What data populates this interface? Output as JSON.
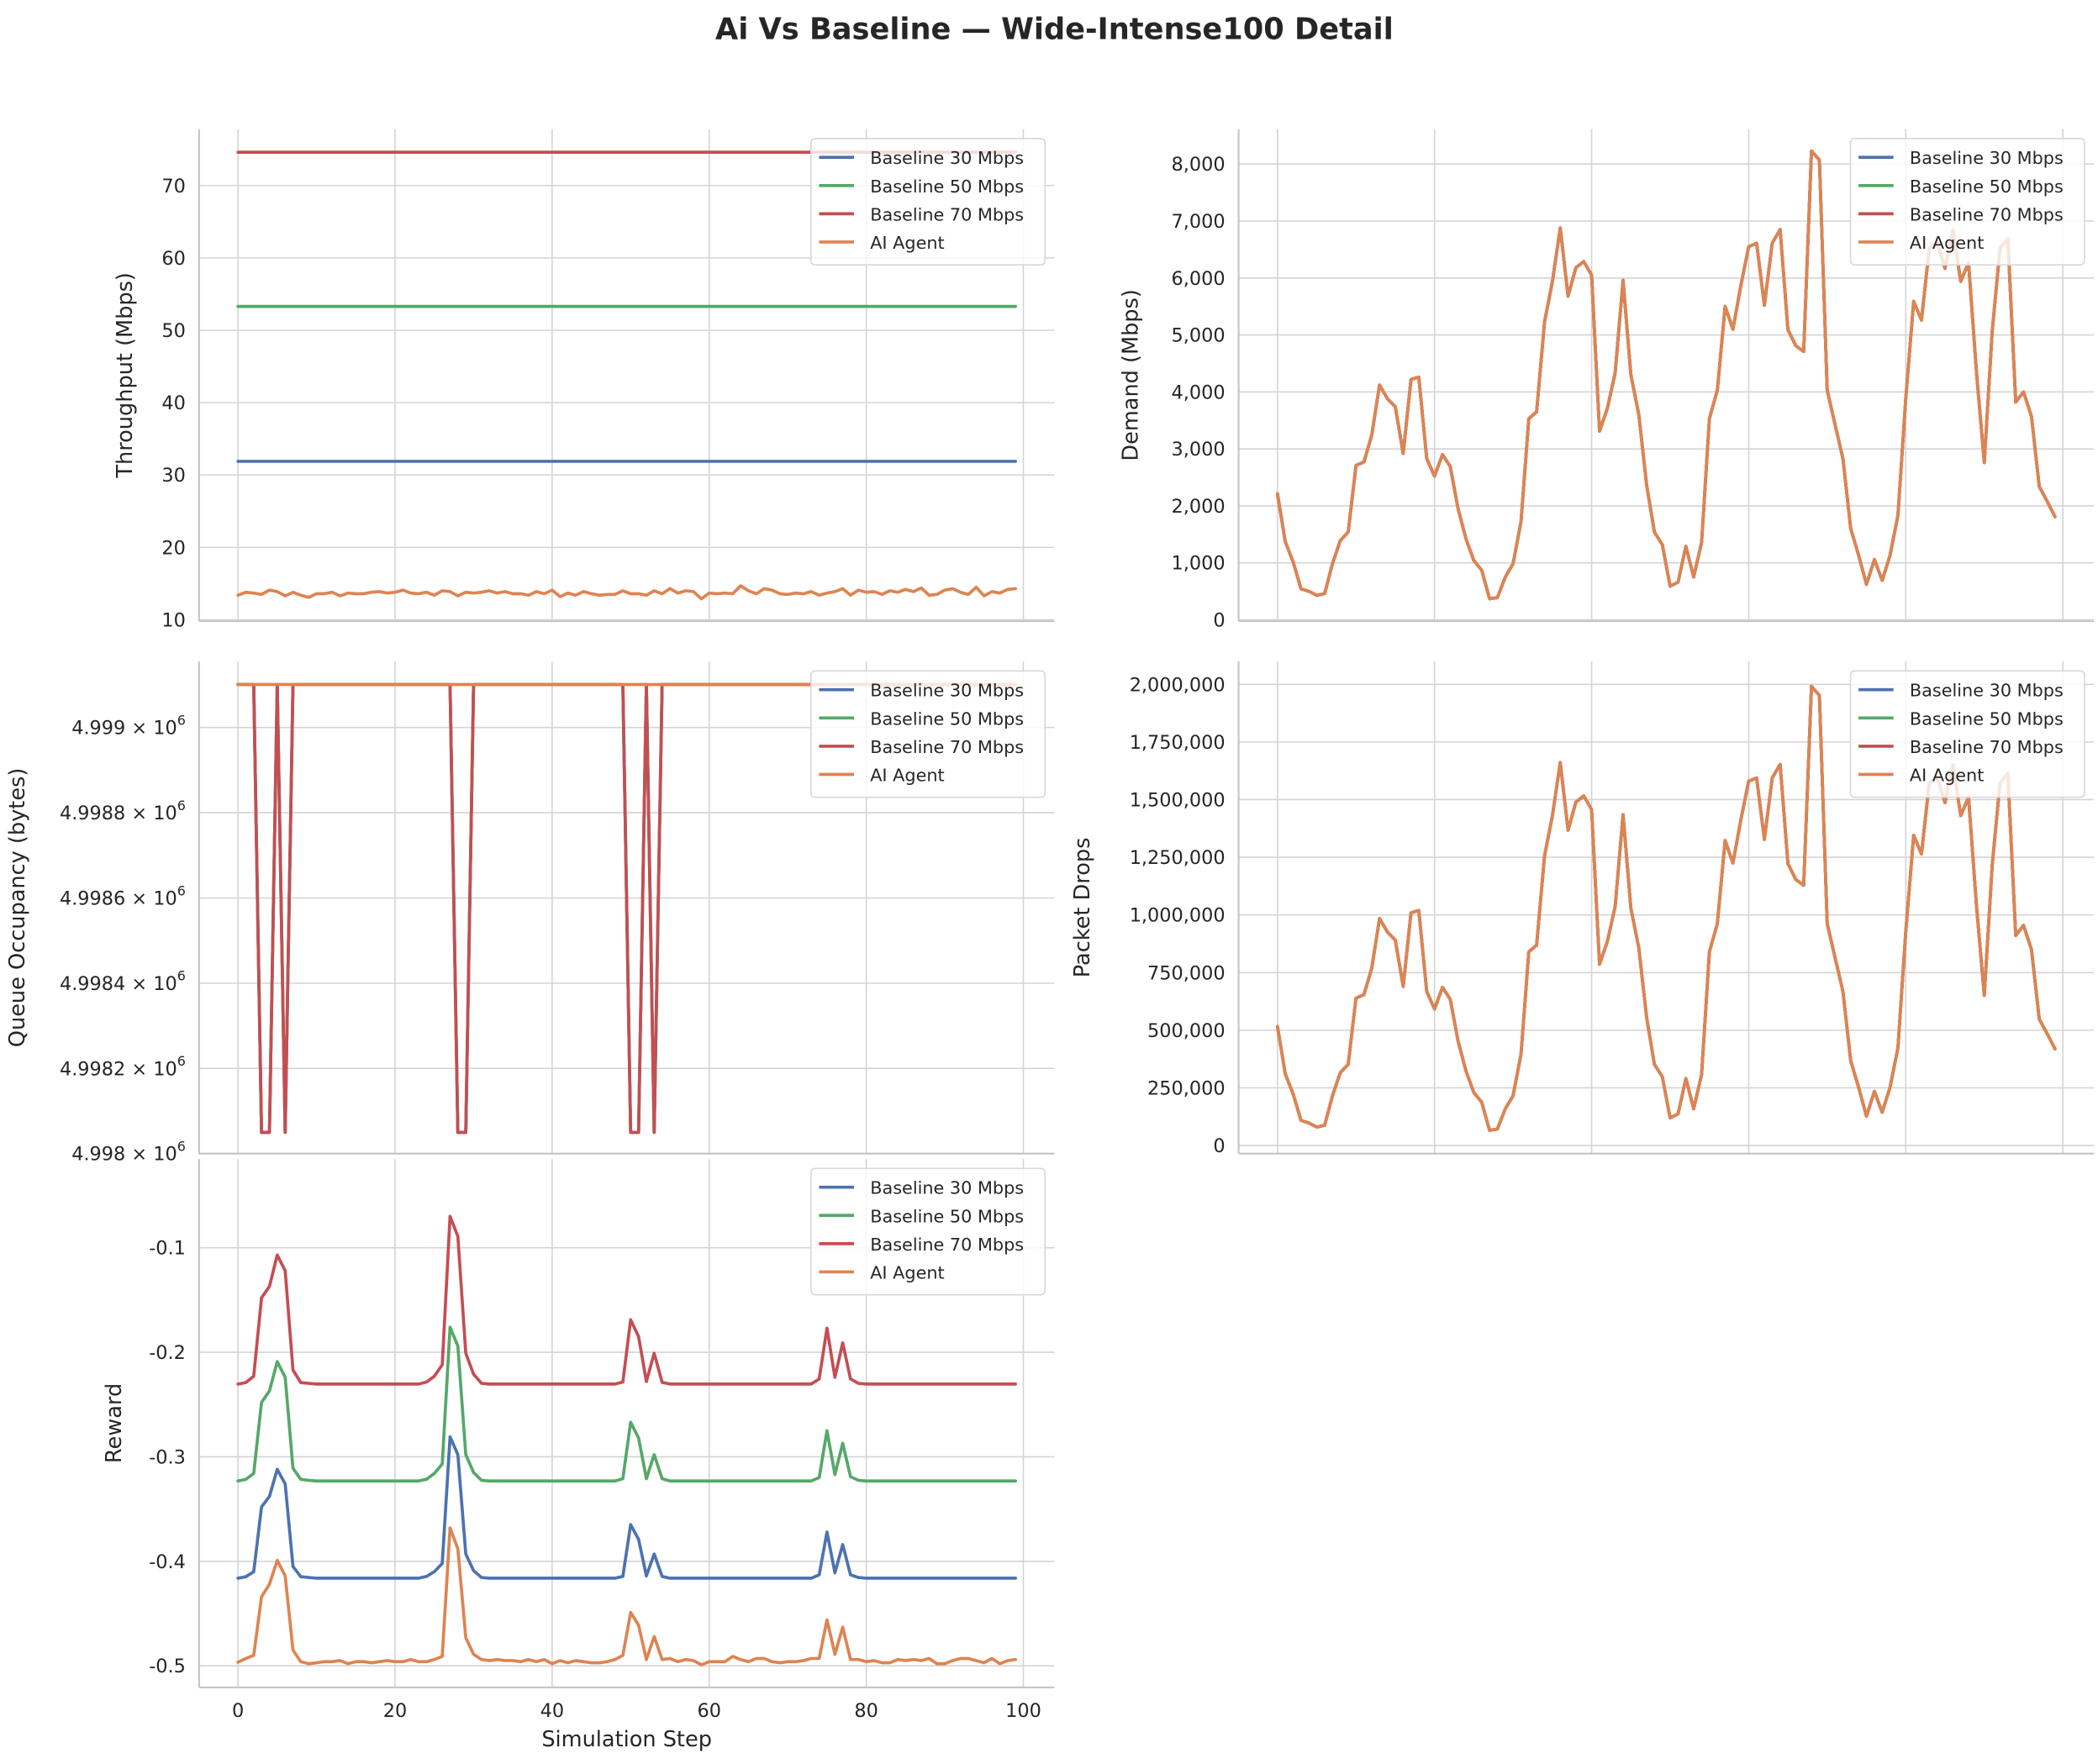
{
  "title": "Ai Vs Baseline — Wide-Intense100 Detail",
  "colors": {
    "Baseline 30 Mbps": "#4c72b0",
    "Baseline 50 Mbps": "#55a868",
    "Baseline 70 Mbps": "#c44e52",
    "AI Agent": "#dd8452"
  },
  "legend_labels": [
    "Baseline 30 Mbps",
    "Baseline 50 Mbps",
    "Baseline 70 Mbps",
    "AI Agent"
  ],
  "chart_data": [
    {
      "id": "throughput",
      "type": "line",
      "ylabel": "Throughput (Mbps)",
      "xlabel": "",
      "xlim": [
        -4.95,
        103.95
      ],
      "ylim": [
        9.81,
        77.8
      ],
      "xticks": [
        0,
        20,
        40,
        60,
        80,
        100
      ],
      "xtick_labels": [],
      "yticks": [
        10,
        20,
        30,
        40,
        50,
        60,
        70
      ],
      "ytick_labels": [
        "10",
        "20",
        "30",
        "40",
        "50",
        "60",
        "70"
      ],
      "grid": true,
      "legend": "upper-right",
      "series": [
        {
          "name": "Baseline 30 Mbps",
          "constant": 31.9
        },
        {
          "name": "Baseline 50 Mbps",
          "constant": 53.3
        },
        {
          "name": "Baseline 70 Mbps",
          "constant": 74.6
        },
        {
          "name": "AI Agent",
          "values": [
            13.4,
            13.8,
            13.7,
            13.5,
            14.1,
            13.9,
            13.3,
            13.8,
            13.4,
            13.1,
            13.6,
            13.6,
            13.8,
            13.3,
            13.7,
            13.6,
            13.6,
            13.8,
            13.9,
            13.7,
            13.8,
            14.1,
            13.7,
            13.6,
            13.8,
            13.4,
            14.0,
            13.9,
            13.3,
            13.8,
            13.7,
            13.8,
            14.0,
            13.7,
            13.9,
            13.6,
            13.6,
            13.4,
            13.9,
            13.6,
            14.1,
            13.2,
            13.7,
            13.4,
            13.9,
            13.6,
            13.4,
            13.5,
            13.5,
            14.0,
            13.6,
            13.6,
            13.4,
            14.0,
            13.6,
            14.3,
            13.7,
            14.0,
            13.9,
            12.9,
            13.7,
            13.6,
            13.7,
            13.6,
            14.7,
            14.0,
            13.6,
            14.3,
            14.1,
            13.6,
            13.5,
            13.7,
            13.6,
            13.9,
            13.4,
            13.7,
            13.9,
            14.3,
            13.4,
            14.1,
            13.8,
            13.9,
            13.5,
            14.0,
            13.8,
            14.2,
            13.9,
            14.4,
            13.4,
            13.5,
            14.1,
            14.3,
            13.8,
            13.5,
            14.5,
            13.3,
            13.9,
            13.7,
            14.2,
            14.3
          ]
        }
      ]
    },
    {
      "id": "demand",
      "type": "line",
      "ylabel": "Demand (Mbps)",
      "xlabel": "",
      "xlim": [
        -4.95,
        103.95
      ],
      "ylim": [
        -24,
        8614
      ],
      "xticks": [
        0,
        20,
        40,
        60,
        80,
        100
      ],
      "xtick_labels": [],
      "yticks": [
        0,
        1000,
        2000,
        3000,
        4000,
        5000,
        6000,
        7000,
        8000
      ],
      "ytick_labels": [
        "0",
        "1,000",
        "2,000",
        "3,000",
        "4,000",
        "5,000",
        "6,000",
        "7,000",
        "8,000"
      ],
      "grid": true,
      "legend": "upper-right",
      "note": "all four series identical",
      "shared_values": [
        2210,
        1370,
        1013,
        545,
        500,
        430,
        460,
        985,
        1390,
        1540,
        2710,
        2770,
        3240,
        4120,
        3880,
        3740,
        2920,
        4220,
        4260,
        2830,
        2520,
        2900,
        2690,
        1950,
        1420,
        1040,
        870,
        370,
        390,
        750,
        985,
        1720,
        3530,
        3650,
        5230,
        5930,
        6880,
        5680,
        6180,
        6290,
        6050,
        3310,
        3710,
        4330,
        5960,
        4300,
        3600,
        2370,
        1540,
        1320,
        590,
        660,
        1290,
        750,
        1360,
        3530,
        4030,
        5500,
        5100,
        5870,
        6550,
        6610,
        5520,
        6610,
        6850,
        5090,
        4810,
        4710,
        8230,
        8070,
        4030,
        3420,
        2830,
        1600,
        1130,
        620,
        1060,
        690,
        1130,
        1830,
        3880,
        5590,
        5260,
        6520,
        6630,
        6170,
        6840,
        5940,
        6270,
        4350,
        2760,
        5060,
        6520,
        6690,
        3820,
        4000,
        3570,
        2340,
        2080,
        1810
      ],
      "series": [
        {
          "name": "Baseline 30 Mbps"
        },
        {
          "name": "Baseline 50 Mbps"
        },
        {
          "name": "Baseline 70 Mbps"
        },
        {
          "name": "AI Agent"
        }
      ]
    },
    {
      "id": "queue",
      "type": "line",
      "ylabel": "Queue Occupancy (bytes)",
      "xlabel": "",
      "yscale": "log",
      "xlim": [
        -4.95,
        103.95
      ],
      "ylim": [
        4998000,
        4999155
      ],
      "xticks": [
        0,
        20,
        40,
        60,
        80,
        100
      ],
      "xtick_labels": [],
      "yticks": [
        4998000,
        4998200,
        4998400,
        4998600,
        4998800,
        4999000
      ],
      "ytick_labels": [
        "4.998",
        "4.9982",
        "4.9984",
        "4.9986",
        "4.9988",
        "4.999"
      ],
      "ytick_exponent_base": "× 10",
      "ytick_exponent": "6",
      "grid": true,
      "legend": "upper-right",
      "baseline_high": 4999101,
      "baseline_low": 4998050,
      "low_steps": [
        3,
        4,
        6,
        28,
        29,
        50,
        51,
        53
      ],
      "series": [
        {
          "name": "Baseline 30 Mbps",
          "pattern": "dips"
        },
        {
          "name": "Baseline 50 Mbps",
          "pattern": "dips"
        },
        {
          "name": "Baseline 70 Mbps",
          "pattern": "dips"
        },
        {
          "name": "AI Agent",
          "constant": 4999101
        }
      ]
    },
    {
      "id": "drops",
      "type": "line",
      "ylabel": "Packet Drops",
      "xlabel": "",
      "xlim": [
        -4.95,
        103.95
      ],
      "ylim": [
        -35000,
        2099000
      ],
      "xticks": [
        0,
        20,
        40,
        60,
        80,
        100
      ],
      "xtick_labels": [],
      "yticks": [
        0,
        250000,
        500000,
        750000,
        1000000,
        1250000,
        1500000,
        1750000,
        2000000
      ],
      "ytick_labels": [
        "0",
        "250,000",
        "500,000",
        "750,000",
        "1,000,000",
        "1,250,000",
        "1,500,000",
        "1,750,000",
        "2,000,000"
      ],
      "grid": true,
      "legend": "upper-right",
      "note": "all four series identical",
      "shared_values": [
        516000,
        311000,
        223000,
        109000,
        98000,
        80000,
        88000,
        216000,
        316000,
        352000,
        639000,
        654000,
        769000,
        984000,
        926000,
        891000,
        690000,
        1009000,
        1019000,
        668000,
        592000,
        686000,
        634000,
        453000,
        323000,
        230000,
        188000,
        66000,
        71000,
        159000,
        216000,
        396000,
        840000,
        869000,
        1256000,
        1428000,
        1661000,
        1367000,
        1489000,
        1516000,
        1457000,
        786000,
        884000,
        1036000,
        1435000,
        1029000,
        857000,
        556000,
        352000,
        298000,
        120000,
        137000,
        291000,
        159000,
        308000,
        840000,
        962000,
        1323000,
        1225000,
        1413000,
        1580000,
        1594000,
        1327000,
        1594000,
        1653000,
        1222000,
        1153000,
        1129000,
        1991000,
        1952000,
        962000,
        813000,
        668000,
        367000,
        252000,
        127000,
        235000,
        144000,
        252000,
        423000,
        926000,
        1345000,
        1264000,
        1572000,
        1599000,
        1487000,
        1651000,
        1430000,
        1511000,
        1041000,
        651000,
        1215000,
        1572000,
        1614000,
        911000,
        955000,
        850000,
        548000,
        485000,
        419000
      ],
      "series": [
        {
          "name": "Baseline 30 Mbps"
        },
        {
          "name": "Baseline 50 Mbps"
        },
        {
          "name": "Baseline 70 Mbps"
        },
        {
          "name": "AI Agent"
        }
      ]
    },
    {
      "id": "reward",
      "type": "line",
      "ylabel": "Reward",
      "xlabel": "Simulation Step",
      "xlim": [
        -4.95,
        103.95
      ],
      "ylim": [
        -0.5206,
        -0.0151
      ],
      "xticks": [
        0,
        20,
        40,
        60,
        80,
        100
      ],
      "xtick_labels": [
        "0",
        "20",
        "40",
        "60",
        "80",
        "100"
      ],
      "yticks": [
        -0.5,
        -0.4,
        -0.3,
        -0.2,
        -0.1
      ],
      "ytick_labels": [
        "-0.5",
        "-0.4",
        "-0.3",
        "-0.2",
        "-0.1"
      ],
      "grid": true,
      "legend": "upper-right",
      "series": [
        {
          "name": "Baseline 30 Mbps",
          "base": -0.4161,
          "overrides": {
            "1": -0.4148,
            "2": -0.41,
            "3": -0.348,
            "4": -0.338,
            "5": -0.312,
            "6": -0.326,
            "7": -0.405,
            "8": -0.4148,
            "9": -0.4155,
            "24": -0.4145,
            "25": -0.41,
            "26": -0.402,
            "27": -0.281,
            "28": -0.298,
            "29": -0.393,
            "30": -0.409,
            "31": -0.4155,
            "49": -0.4145,
            "50": -0.365,
            "51": -0.379,
            "52": -0.414,
            "53": -0.393,
            "54": -0.4145,
            "74": -0.413,
            "75": -0.372,
            "76": -0.411,
            "77": -0.384,
            "78": -0.413,
            "79": -0.4155
          }
        },
        {
          "name": "Baseline 50 Mbps",
          "base": -0.3232,
          "overrides": {
            "1": -0.3216,
            "2": -0.316,
            "3": -0.248,
            "4": -0.237,
            "5": -0.209,
            "6": -0.224,
            "7": -0.311,
            "8": -0.3216,
            "9": -0.3225,
            "24": -0.3215,
            "25": -0.316,
            "26": -0.307,
            "27": -0.176,
            "28": -0.194,
            "29": -0.298,
            "30": -0.315,
            "31": -0.3225,
            "49": -0.321,
            "50": -0.267,
            "51": -0.282,
            "52": -0.321,
            "53": -0.298,
            "54": -0.321,
            "74": -0.32,
            "75": -0.275,
            "76": -0.317,
            "77": -0.287,
            "78": -0.319,
            "79": -0.3225
          }
        },
        {
          "name": "Baseline 70 Mbps",
          "base": -0.2304,
          "overrides": {
            "1": -0.229,
            "2": -0.223,
            "3": -0.148,
            "4": -0.137,
            "5": -0.107,
            "6": -0.122,
            "7": -0.217,
            "8": -0.229,
            "9": -0.2298,
            "24": -0.2285,
            "25": -0.223,
            "26": -0.212,
            "27": -0.07,
            "28": -0.089,
            "29": -0.201,
            "30": -0.221,
            "31": -0.2298,
            "49": -0.2285,
            "50": -0.169,
            "51": -0.185,
            "52": -0.228,
            "53": -0.201,
            "54": -0.2288,
            "74": -0.2255,
            "75": -0.177,
            "76": -0.224,
            "77": -0.191,
            "78": -0.2255,
            "79": -0.2298
          }
        },
        {
          "name": "AI Agent",
          "values": [
            -0.4965,
            -0.493,
            -0.49,
            -0.434,
            -0.422,
            -0.399,
            -0.414,
            -0.485,
            -0.496,
            -0.498,
            -0.497,
            -0.496,
            -0.496,
            -0.495,
            -0.498,
            -0.496,
            -0.496,
            -0.497,
            -0.496,
            -0.495,
            -0.496,
            -0.496,
            -0.494,
            -0.496,
            -0.496,
            -0.494,
            -0.491,
            -0.368,
            -0.388,
            -0.473,
            -0.489,
            -0.494,
            -0.495,
            -0.494,
            -0.495,
            -0.495,
            -0.496,
            -0.494,
            -0.496,
            -0.494,
            -0.498,
            -0.495,
            -0.497,
            -0.495,
            -0.496,
            -0.497,
            -0.497,
            -0.496,
            -0.494,
            -0.49,
            -0.449,
            -0.461,
            -0.494,
            -0.472,
            -0.494,
            -0.493,
            -0.496,
            -0.494,
            -0.495,
            -0.499,
            -0.496,
            -0.496,
            -0.496,
            -0.491,
            -0.494,
            -0.496,
            -0.493,
            -0.493,
            -0.496,
            -0.497,
            -0.496,
            -0.496,
            -0.495,
            -0.493,
            -0.493,
            -0.456,
            -0.489,
            -0.463,
            -0.494,
            -0.494,
            -0.496,
            -0.495,
            -0.497,
            -0.497,
            -0.494,
            -0.495,
            -0.494,
            -0.495,
            -0.493,
            -0.498,
            -0.498,
            -0.495,
            -0.493,
            -0.493,
            -0.495,
            -0.497,
            -0.493,
            -0.498,
            -0.495,
            -0.494
          ]
        }
      ]
    }
  ]
}
